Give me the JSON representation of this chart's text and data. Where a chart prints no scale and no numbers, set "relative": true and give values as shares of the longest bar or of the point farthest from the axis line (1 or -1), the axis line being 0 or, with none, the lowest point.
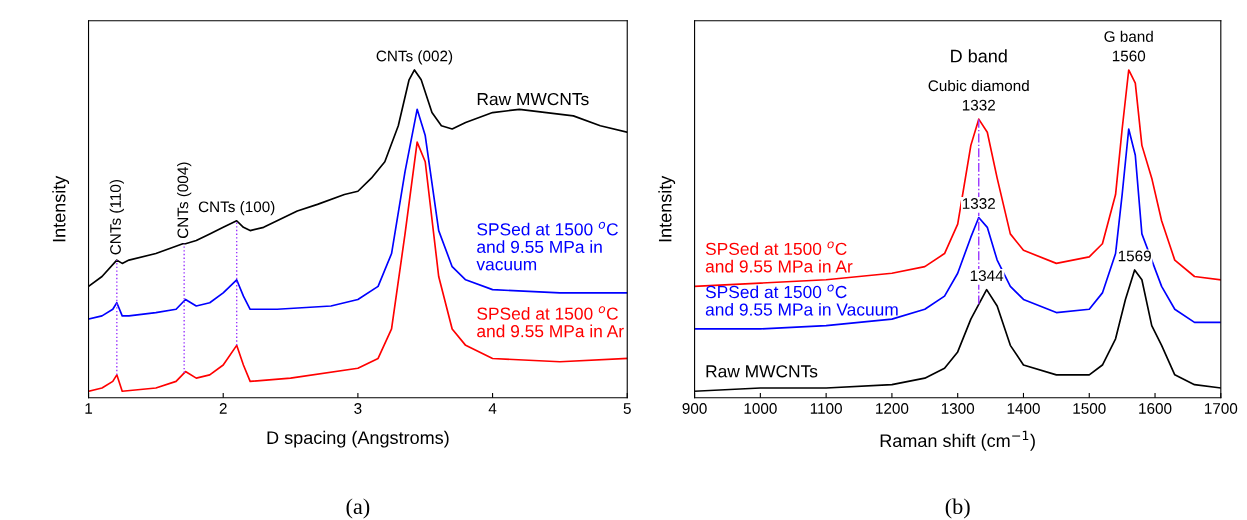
{
  "chart_data": [
    {
      "type": "line",
      "relative": true,
      "title": "(a)",
      "xlabel": "D spacing (Angstroms)",
      "ylabel": "Intensity",
      "xlim": [
        1,
        5
      ],
      "xticks": [
        1,
        2,
        3,
        4,
        5
      ],
      "legend": false,
      "grid": false,
      "series": [
        {
          "name": "Raw MWCNTs",
          "color": "#000000",
          "x": [
            1.0,
            1.1,
            1.21,
            1.25,
            1.3,
            1.5,
            1.7,
            1.72,
            1.8,
            1.9,
            2.0,
            2.1,
            2.15,
            2.2,
            2.3,
            2.5,
            2.55,
            2.7,
            2.9,
            3.0,
            3.1,
            3.2,
            3.3,
            3.38,
            3.42,
            3.47,
            3.55,
            3.62,
            3.7,
            3.8,
            4.0,
            4.2,
            4.4,
            4.6,
            4.8,
            5.0
          ],
          "values": [
            0.34,
            0.37,
            0.42,
            0.41,
            0.42,
            0.44,
            0.47,
            0.47,
            0.48,
            0.5,
            0.52,
            0.54,
            0.52,
            0.51,
            0.52,
            0.56,
            0.57,
            0.59,
            0.62,
            0.63,
            0.67,
            0.72,
            0.83,
            0.97,
            1.0,
            0.97,
            0.87,
            0.83,
            0.82,
            0.84,
            0.87,
            0.88,
            0.87,
            0.86,
            0.83,
            0.81
          ]
        },
        {
          "name": "SPSed at 1500 $^{o}$C\nand 9.55 MPa in\nvacuum",
          "color": "#0000ff",
          "x": [
            1.0,
            1.1,
            1.18,
            1.21,
            1.25,
            1.3,
            1.5,
            1.65,
            1.72,
            1.8,
            1.9,
            2.0,
            2.05,
            2.1,
            2.15,
            2.2,
            2.4,
            2.8,
            3.0,
            3.15,
            3.25,
            3.35,
            3.44,
            3.5,
            3.6,
            3.7,
            3.8,
            4.0,
            4.5,
            5.0
          ],
          "values": [
            0.24,
            0.25,
            0.27,
            0.29,
            0.25,
            0.25,
            0.26,
            0.27,
            0.3,
            0.28,
            0.29,
            0.32,
            0.34,
            0.36,
            0.31,
            0.27,
            0.27,
            0.28,
            0.3,
            0.34,
            0.44,
            0.69,
            0.88,
            0.8,
            0.51,
            0.4,
            0.36,
            0.33,
            0.32,
            0.32
          ]
        },
        {
          "name": "SPSed at 1500 $^{o}$C\nand 9.55 MPa in Ar",
          "color": "#ff0000",
          "x": [
            1.0,
            1.1,
            1.18,
            1.21,
            1.25,
            1.5,
            1.65,
            1.72,
            1.8,
            1.9,
            2.0,
            2.1,
            2.15,
            2.2,
            2.5,
            3.0,
            3.15,
            3.25,
            3.35,
            3.44,
            3.5,
            3.6,
            3.7,
            3.8,
            4.0,
            4.5,
            5.0
          ],
          "values": [
            0.02,
            0.03,
            0.05,
            0.07,
            0.02,
            0.03,
            0.05,
            0.08,
            0.06,
            0.07,
            0.1,
            0.16,
            0.1,
            0.05,
            0.06,
            0.09,
            0.12,
            0.21,
            0.5,
            0.78,
            0.72,
            0.37,
            0.21,
            0.16,
            0.12,
            0.11,
            0.12
          ]
        }
      ],
      "ref_lines": [
        {
          "axis": "x",
          "value": 1.21,
          "label": "CNTs (110)",
          "color": "#9933ff",
          "line_style": "dotted"
        },
        {
          "axis": "x",
          "value": 1.71,
          "label": "CNTs (004)",
          "color": "#9933ff",
          "line_style": "dotted"
        },
        {
          "axis": "x",
          "value": 2.1,
          "color": "#9933ff",
          "line_style": "dotted"
        }
      ],
      "annotations": [
        {
          "text": "CNTs (100)",
          "x": 2.1,
          "y": 0.54
        },
        {
          "text": "CNTs (002)",
          "x": 3.42,
          "y": 1.0
        }
      ]
    },
    {
      "type": "line",
      "relative": true,
      "title": "(b)",
      "xlabel": "Raman shift (cm$^{−1}$)",
      "ylabel": "Intensity",
      "xlim": [
        900,
        1700
      ],
      "xticks": [
        900,
        1000,
        1100,
        1200,
        1300,
        1400,
        1500,
        1600,
        1700
      ],
      "legend": false,
      "grid": false,
      "series": [
        {
          "name": "SPSed at 1500 $^{o}$C\nand 9.55 MPa in Ar",
          "color": "#ff0000",
          "x": [
            900,
            1000,
            1100,
            1200,
            1250,
            1280,
            1300,
            1320,
            1332,
            1345,
            1360,
            1380,
            1400,
            1450,
            1500,
            1520,
            1540,
            1550,
            1560,
            1570,
            1580,
            1595,
            1610,
            1630,
            1660,
            1700
          ],
          "values": [
            0.34,
            0.35,
            0.36,
            0.38,
            0.4,
            0.44,
            0.53,
            0.77,
            0.85,
            0.81,
            0.67,
            0.5,
            0.45,
            0.41,
            0.43,
            0.47,
            0.62,
            0.82,
            1.0,
            0.96,
            0.77,
            0.67,
            0.54,
            0.42,
            0.37,
            0.36
          ]
        },
        {
          "name": "SPSed at 1500 $^{o}$C\nand 9.55 MPa in Vacuum",
          "color": "#0000ff",
          "x": [
            900,
            1000,
            1100,
            1200,
            1250,
            1280,
            1300,
            1320,
            1332,
            1345,
            1360,
            1380,
            1400,
            1450,
            1500,
            1520,
            1540,
            1550,
            1560,
            1570,
            1580,
            1595,
            1610,
            1630,
            1660,
            1700
          ],
          "values": [
            0.21,
            0.21,
            0.22,
            0.24,
            0.27,
            0.31,
            0.38,
            0.49,
            0.55,
            0.52,
            0.42,
            0.34,
            0.3,
            0.26,
            0.27,
            0.32,
            0.44,
            0.62,
            0.82,
            0.74,
            0.5,
            0.42,
            0.34,
            0.27,
            0.23,
            0.23
          ]
        },
        {
          "name": "Raw MWCNTs",
          "color": "#000000",
          "x": [
            900,
            1000,
            1100,
            1200,
            1250,
            1280,
            1300,
            1320,
            1344,
            1360,
            1380,
            1400,
            1450,
            1500,
            1520,
            1540,
            1555,
            1569,
            1580,
            1595,
            1610,
            1630,
            1660,
            1700
          ],
          "values": [
            0.02,
            0.03,
            0.03,
            0.04,
            0.06,
            0.09,
            0.14,
            0.24,
            0.33,
            0.28,
            0.16,
            0.1,
            0.07,
            0.07,
            0.1,
            0.18,
            0.3,
            0.39,
            0.36,
            0.22,
            0.16,
            0.07,
            0.04,
            0.03
          ]
        }
      ],
      "ref_lines": [
        {
          "axis": "x",
          "value": 1332,
          "color": "#9933ff",
          "line_style": "dashdot"
        }
      ],
      "annotations": [
        "D band",
        {
          "text": "Cubic diamond",
          "x": 1332,
          "y": 0.85
        },
        {
          "text": "1332",
          "x": 1332,
          "y": 0.85
        },
        {
          "text": "G band",
          "x": 1560,
          "y": 1.0
        },
        {
          "text": "1560",
          "x": 1560,
          "y": 1.0
        },
        {
          "text": "1332",
          "x": 1332,
          "y": 0.55
        },
        {
          "text": "1344",
          "x": 1344,
          "y": 0.33
        },
        {
          "text": "1569",
          "x": 1569,
          "y": 0.39
        }
      ]
    }
  ]
}
